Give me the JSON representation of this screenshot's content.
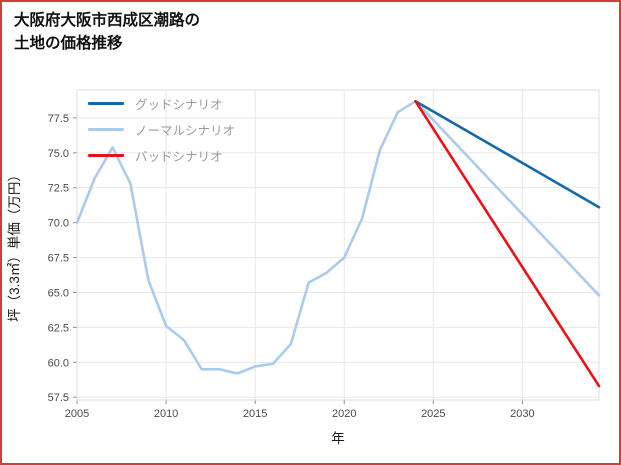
{
  "colors": {
    "page_border": "#cf3d3d",
    "grid": "#e7e7e7",
    "frame": "#dcdcdc",
    "tick": "#8c8c8c",
    "tick_text": "#4a4a4a",
    "axis_label_text": "#1a1a1a",
    "legend_text": "#9a9a9a",
    "title_text": "#111111"
  },
  "title": {
    "line1": "大阪府大阪市西成区潮路の",
    "line2": "土地の価格推移"
  },
  "chart_data": {
    "type": "line",
    "title": "大阪府大阪市西成区潮路の土地の価格推移",
    "xlabel": "年",
    "ylabel": "坪（3.3㎡）単価（万円）",
    "xlim": [
      2005,
      2034.3
    ],
    "ylim": [
      57.3,
      79.5
    ],
    "grid": true,
    "legend_position": "upper-left",
    "xticks": [
      2005,
      2010,
      2015,
      2020,
      2025,
      2030
    ],
    "xtick_labels": [
      "2005",
      "2010",
      "2015",
      "2020",
      "2025",
      "2030"
    ],
    "yticks": [
      57.5,
      60.0,
      62.5,
      65.0,
      67.5,
      70.0,
      72.5,
      75.0,
      77.5
    ],
    "ytick_labels": [
      "57.5",
      "60.0",
      "62.5",
      "65.0",
      "67.5",
      "70.0",
      "72.5",
      "75.0",
      "77.5"
    ],
    "series": [
      {
        "key": "good",
        "name": "グッドシナリオ",
        "color": "#1668a8",
        "width": 2.6,
        "x": [
          2024,
          2034.3
        ],
        "values": [
          78.7,
          71.1
        ]
      },
      {
        "key": "normal",
        "name": "ノーマルシナリオ",
        "color": "#a9cbee",
        "width": 2.6,
        "x": [
          2005,
          2006,
          2007,
          2008,
          2009,
          2010,
          2011,
          2012,
          2013,
          2014,
          2015,
          2016,
          2017,
          2018,
          2019,
          2020,
          2021,
          2022,
          2023,
          2024,
          2034.3
        ],
        "values": [
          70.0,
          73.2,
          75.4,
          72.8,
          65.9,
          62.6,
          61.6,
          59.5,
          59.5,
          59.2,
          59.7,
          59.9,
          61.3,
          65.7,
          66.4,
          67.5,
          70.3,
          75.2,
          77.9,
          78.7,
          64.8
        ]
      },
      {
        "key": "bad",
        "name": "バッドシナリオ",
        "color": "#e8131a",
        "width": 2.6,
        "x": [
          2024,
          2034.3
        ],
        "values": [
          78.7,
          58.3
        ]
      }
    ]
  }
}
